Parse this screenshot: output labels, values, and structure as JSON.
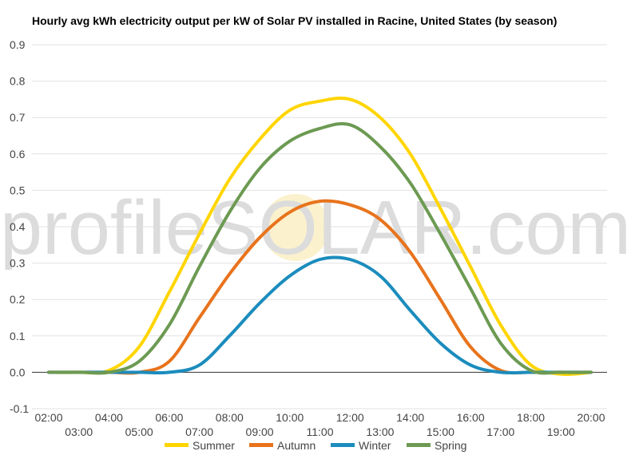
{
  "chart_data": {
    "type": "line",
    "title": "Hourly avg kWh electricity output per kW of Solar PV installed in Racine, United States (by season)",
    "watermark": "profileSOLAR.com",
    "xlabel": "",
    "ylabel": "",
    "ylim": [
      -0.1,
      0.9
    ],
    "yticks": [
      "-0.1",
      "0.0",
      "0.1",
      "0.2",
      "0.3",
      "0.4",
      "0.5",
      "0.6",
      "0.7",
      "0.8",
      "0.9"
    ],
    "x": [
      "02:00",
      "03:00",
      "04:00",
      "05:00",
      "06:00",
      "07:00",
      "08:00",
      "09:00",
      "10:00",
      "11:00",
      "12:00",
      "13:00",
      "14:00",
      "15:00",
      "16:00",
      "17:00",
      "18:00",
      "19:00",
      "20:00"
    ],
    "grid": true,
    "legend_position": "bottom",
    "series": [
      {
        "name": "Summer",
        "color": "#ffd500",
        "values": [
          0.0,
          0.0,
          0.005,
          0.07,
          0.22,
          0.38,
          0.53,
          0.64,
          0.72,
          0.745,
          0.75,
          0.7,
          0.6,
          0.45,
          0.29,
          0.13,
          0.02,
          -0.005,
          0.0
        ]
      },
      {
        "name": "Autumn",
        "color": "#e8731c",
        "values": [
          0.0,
          0.0,
          0.0,
          0.0,
          0.03,
          0.15,
          0.27,
          0.37,
          0.44,
          0.47,
          0.46,
          0.42,
          0.33,
          0.2,
          0.07,
          0.005,
          0.0,
          0.0,
          0.0
        ]
      },
      {
        "name": "Winter",
        "color": "#1b8cbd",
        "values": [
          0.0,
          0.0,
          0.0,
          0.0,
          0.0,
          0.02,
          0.1,
          0.19,
          0.265,
          0.31,
          0.31,
          0.265,
          0.17,
          0.08,
          0.02,
          0.0,
          0.0,
          0.0,
          0.0
        ]
      },
      {
        "name": "Spring",
        "color": "#6c9a52",
        "values": [
          0.0,
          0.0,
          0.0,
          0.03,
          0.13,
          0.29,
          0.44,
          0.56,
          0.635,
          0.67,
          0.68,
          0.62,
          0.52,
          0.38,
          0.23,
          0.08,
          0.005,
          0.0,
          0.0
        ]
      }
    ]
  }
}
